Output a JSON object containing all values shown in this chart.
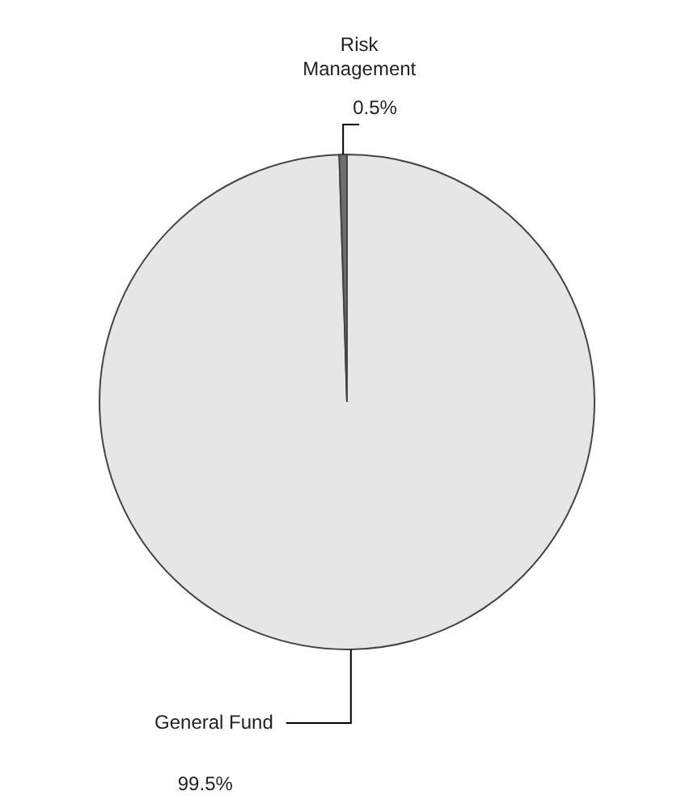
{
  "chart_data": {
    "type": "pie",
    "categories": [
      "General Fund",
      "Risk Management"
    ],
    "values": [
      99.5,
      0.5
    ],
    "colors": [
      "#e6e6e6",
      "#6e6e6e"
    ],
    "value_labels": [
      "99.5%",
      "0.5%"
    ],
    "legend": false
  }
}
